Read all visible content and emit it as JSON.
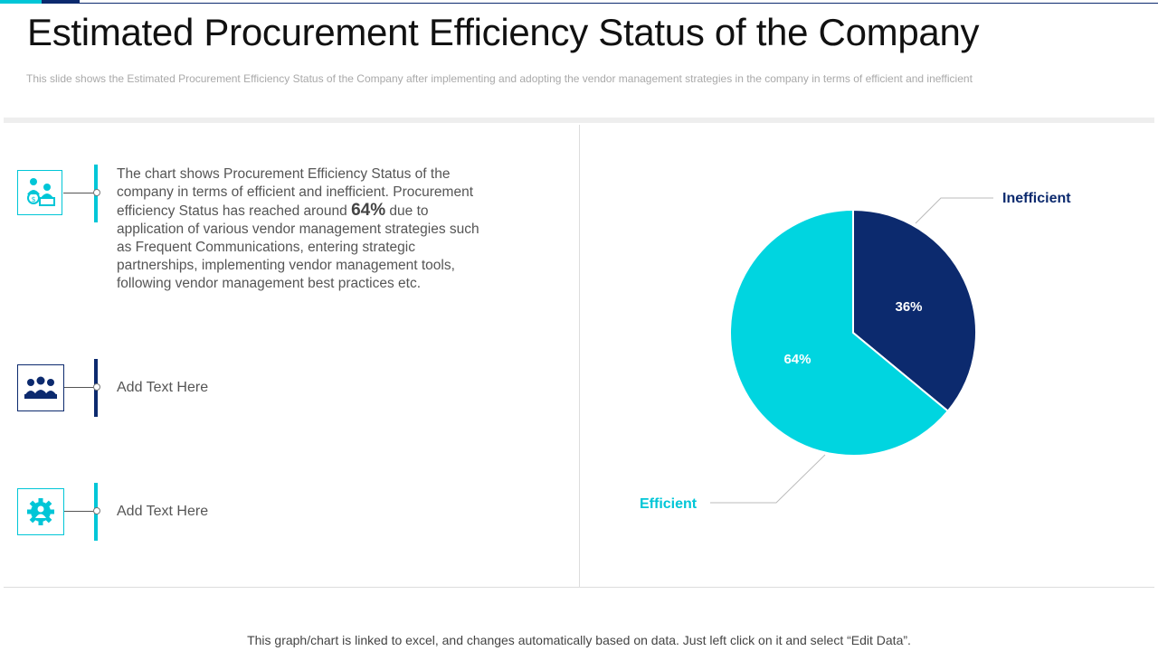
{
  "title": "Estimated Procurement Efficiency Status of the Company",
  "subtitle": "This slide shows the Estimated Procurement Efficiency Status of the Company after implementing and adopting the vendor  management  strategies in the company in terms of efficient and inefficient",
  "description": {
    "before": "The chart shows Procurement Efficiency Status of the company in terms of efficient and inefficient. Procurement efficiency Status has reached around ",
    "highlight": "64%",
    "after": " due to application of various vendor management strategies such as Frequent Communications, entering strategic partnerships, implementing vendor management tools, following vendor management best practices etc."
  },
  "items": [
    {
      "text": "Add Text Here",
      "icon": "business-people-icon"
    },
    {
      "text": "Add Text Here",
      "icon": "gear-person-icon"
    }
  ],
  "icons": {
    "first": "money-team-icon"
  },
  "colors": {
    "cyan": "#00c6d7",
    "navy": "#0c2a6e"
  },
  "chart_data": {
    "type": "pie",
    "categories": [
      "Inefficient",
      "Efficient"
    ],
    "values": [
      36,
      64
    ],
    "data_labels": [
      "36%",
      "64%"
    ],
    "colors": [
      "#0c2a6e",
      "#00d5e0"
    ],
    "legend": "callout labels outside the pie"
  },
  "footer": "This graph/chart is linked to excel, and changes automatically based on data. Just left click on it and select “Edit Data”."
}
